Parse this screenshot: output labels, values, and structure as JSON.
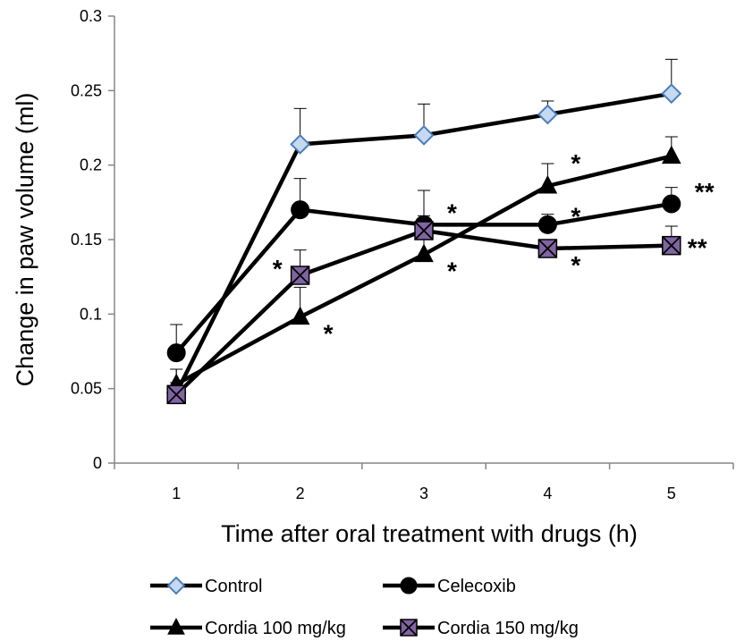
{
  "chart_data": {
    "type": "line",
    "title": "",
    "xlabel": "Time after oral treatment with drugs (h)",
    "ylabel": "Change in paw volume (ml)",
    "x": [
      1,
      2,
      3,
      4,
      5
    ],
    "x_tick_labels": [
      "1",
      "2",
      "3",
      "4",
      "5"
    ],
    "ylim": [
      0,
      0.3
    ],
    "y_ticks": [
      0,
      0.05,
      0.1,
      0.15,
      0.2,
      0.25,
      0.3
    ],
    "y_tick_labels": [
      "0",
      "0.05",
      "0.1",
      "0.15",
      "0.2",
      "0.25",
      "0.3"
    ],
    "grid": false,
    "legend_position": "bottom",
    "series": [
      {
        "name": "Control",
        "marker": "diamond",
        "line_color": "#000000",
        "marker_fill": "#c5d9f1",
        "marker_stroke": "#4a7ebb",
        "values": [
          0.047,
          0.214,
          0.22,
          0.234,
          0.248
        ],
        "error": [
          0.016,
          0.024,
          0.021,
          0.009,
          0.023
        ]
      },
      {
        "name": "Celecoxib",
        "marker": "circle",
        "line_color": "#000000",
        "marker_fill": "#000000",
        "marker_stroke": "#000000",
        "values": [
          0.074,
          0.17,
          0.16,
          0.16,
          0.174
        ],
        "error": [
          0.019,
          0.021,
          0.023,
          0.007,
          0.011
        ]
      },
      {
        "name": "Cordia 100 mg/kg",
        "marker": "triangle",
        "line_color": "#000000",
        "marker_fill": "#000000",
        "marker_stroke": "#000000",
        "values": [
          0.053,
          0.098,
          0.14,
          0.186,
          0.206
        ],
        "error": [
          0.01,
          0.02,
          0.026,
          0.015,
          0.013
        ]
      },
      {
        "name": "Cordia 150 mg/kg",
        "marker": "square-x",
        "line_color": "#000000",
        "marker_fill": "#8064a2",
        "marker_stroke": "#000000",
        "values": [
          0.046,
          0.126,
          0.156,
          0.144,
          0.146
        ],
        "error": [
          0.008,
          0.017,
          0.027,
          0.006,
          0.013
        ]
      }
    ],
    "annotations": [
      {
        "text": "*",
        "x": 2,
        "series": "Cordia 150 mg/kg",
        "anchor": "left"
      },
      {
        "text": "*",
        "x": 2,
        "series": "Cordia 100 mg/kg",
        "anchor": "right-below"
      },
      {
        "text": "*",
        "x": 3,
        "series": "Celecoxib",
        "anchor": "right-above"
      },
      {
        "text": "*",
        "x": 3,
        "series": "Cordia 100 mg/kg",
        "anchor": "right-below"
      },
      {
        "text": "*",
        "x": 4,
        "series": "Cordia 100 mg/kg",
        "anchor": "right-above"
      },
      {
        "text": "*",
        "x": 4,
        "series": "Celecoxib",
        "anchor": "right-above"
      },
      {
        "text": "*",
        "x": 4,
        "series": "Cordia 150 mg/kg",
        "anchor": "right-below"
      },
      {
        "text": "**",
        "x": 5,
        "series": "Celecoxib",
        "anchor": "right-above"
      },
      {
        "text": "**",
        "x": 5,
        "series": "Cordia 150 mg/kg",
        "anchor": "right"
      }
    ]
  }
}
